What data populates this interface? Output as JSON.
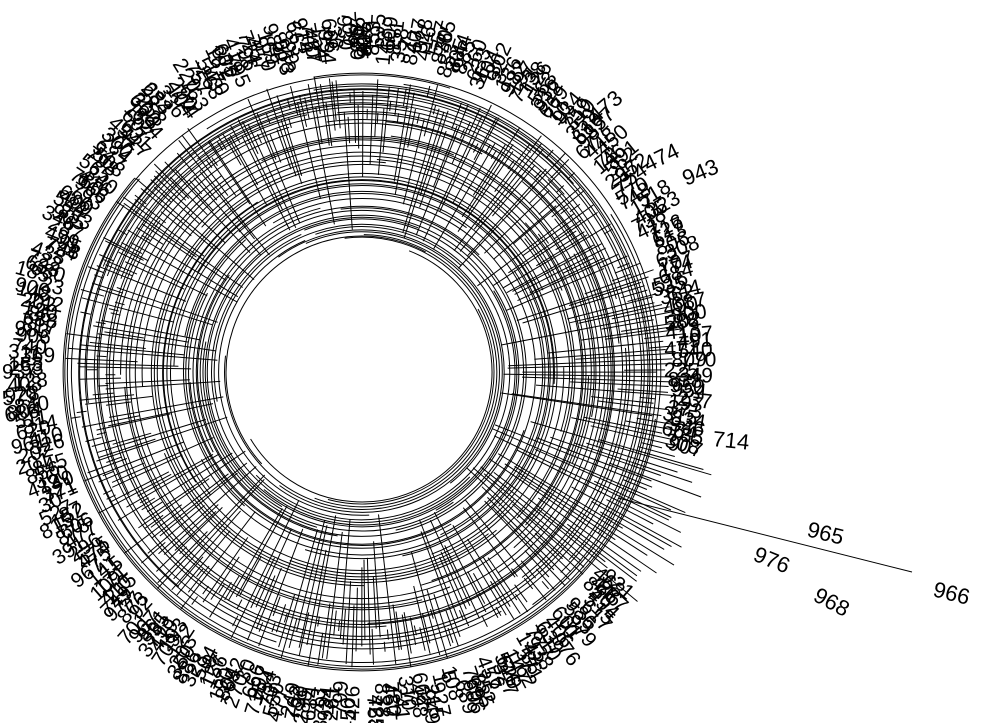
{
  "diagram": {
    "type": "circular-dendrogram",
    "visible_tip_labels": [
      "966",
      "965",
      "968",
      "976",
      "474",
      "943",
      "600",
      "473",
      "714",
      "45",
      "55",
      "35",
      "17",
      "29"
    ],
    "line_color": "#000000",
    "background": "#ffffff"
  }
}
